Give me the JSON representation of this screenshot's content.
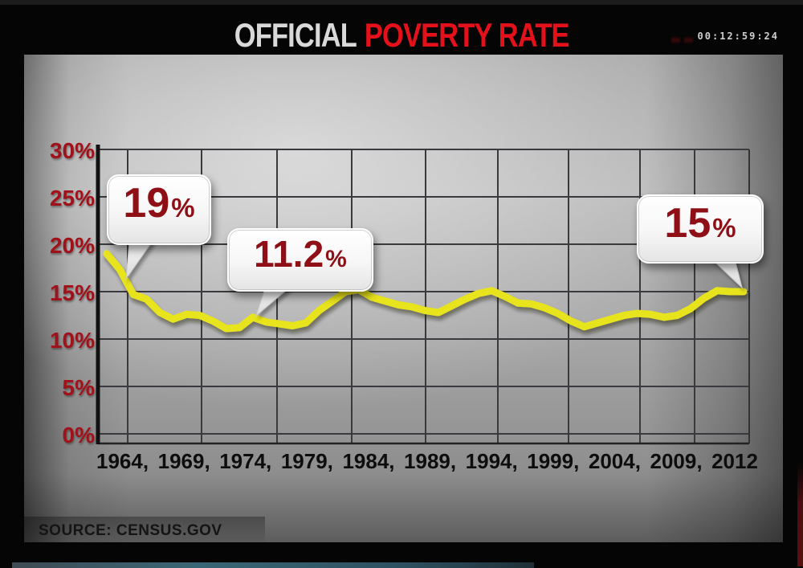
{
  "header": {
    "title_primary": "OFFICIAL",
    "title_accent": "POVERTY RATE",
    "timecode": "00:12:59:24",
    "record_marker_icon": "faint-red-dvr-marks"
  },
  "source": {
    "label": "SOURCE: CENSUS.GOV"
  },
  "colors": {
    "accent_red": "#e4101a",
    "axis_label_red": "#a0111a",
    "callout_red": "#8e1016",
    "line_yellow": "#e7e31d",
    "grid_gray": "#3a3a3e"
  },
  "chart_data": {
    "type": "line",
    "title": "OFFICIAL POVERTY RATE",
    "x": [
      1964,
      1965,
      1966,
      1967,
      1968,
      1969,
      1970,
      1971,
      1972,
      1973,
      1974,
      1975,
      1976,
      1977,
      1978,
      1979,
      1980,
      1981,
      1982,
      1983,
      1984,
      1985,
      1986,
      1987,
      1988,
      1989,
      1990,
      1991,
      1992,
      1993,
      1994,
      1995,
      1996,
      1997,
      1998,
      1999,
      2000,
      2001,
      2002,
      2003,
      2004,
      2005,
      2006,
      2007,
      2008,
      2009,
      2010,
      2011,
      2012
    ],
    "values": [
      19.0,
      17.3,
      14.7,
      14.2,
      12.8,
      12.1,
      12.6,
      12.5,
      11.9,
      11.1,
      11.2,
      12.3,
      11.8,
      11.6,
      11.4,
      11.7,
      13.0,
      14.0,
      15.0,
      15.2,
      14.4,
      14.0,
      13.6,
      13.4,
      13.0,
      12.8,
      13.5,
      14.2,
      14.8,
      15.1,
      14.5,
      13.8,
      13.7,
      13.3,
      12.7,
      11.9,
      11.3,
      11.7,
      12.1,
      12.5,
      12.7,
      12.6,
      12.3,
      12.5,
      13.2,
      14.3,
      15.1,
      15.0,
      15.0
    ],
    "ylim": [
      0,
      30
    ],
    "ytick_labels": [
      "30%",
      "25%",
      "20%",
      "15%",
      "10%",
      "5%",
      "0%"
    ],
    "xtick_labels": [
      "1964,",
      "1969,",
      "1974,",
      "1979,",
      "1984,",
      "1989,",
      "1994,",
      "1999,",
      "2004,",
      "2009,",
      "2012"
    ],
    "grid": true,
    "legend": false,
    "line_color": "#e7e31d",
    "annotations": [
      {
        "num": "19",
        "pct": "%",
        "year": 1964,
        "value": 19.0
      },
      {
        "num": "11.2",
        "pct": "%",
        "year": 1974,
        "value": 11.2
      },
      {
        "num": "15",
        "pct": "%",
        "year": 2012,
        "value": 15.0
      }
    ]
  }
}
